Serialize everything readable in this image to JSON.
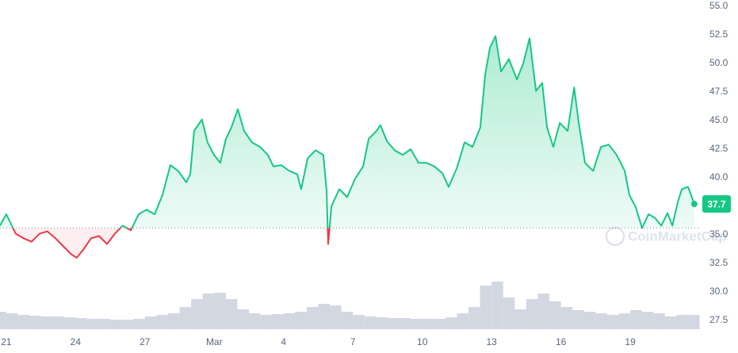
{
  "chart_data": {
    "type": "line",
    "x": [
      -0.27,
      0,
      0.24,
      0.41,
      0.75,
      1.1,
      1.44,
      1.78,
      2.13,
      2.47,
      2.81,
      3.05,
      3.33,
      3.67,
      4.01,
      4.36,
      4.7,
      5.04,
      5.39,
      5.73,
      6.07,
      6.42,
      6.76,
      7.1,
      7.44,
      7.79,
      7.96,
      8.13,
      8.47,
      8.71,
      8.99,
      9.26,
      9.5,
      9.74,
      10.02,
      10.29,
      10.63,
      10.98,
      11.32,
      11.56,
      11.9,
      12.25,
      12.59,
      12.76,
      13.04,
      13.38,
      13.72,
      13.86,
      13.93,
      14.07,
      14.41,
      14.75,
      15.09,
      15.44,
      15.68,
      16.02,
      16.19,
      16.47,
      16.81,
      17.15,
      17.5,
      17.84,
      18.18,
      18.52,
      18.87,
      19.14,
      19.49,
      19.83,
      20.17,
      20.51,
      20.72,
      20.93,
      21.17,
      21.41,
      21.75,
      22.09,
      22.37,
      22.64,
      22.92,
      23.19,
      23.4,
      23.67,
      23.95,
      24.29,
      24.57,
      24.77,
      25.04,
      25.39,
      25.73,
      26.07,
      26.41,
      26.76,
      26.96,
      27.24,
      27.51,
      27.79,
      28.06,
      28.34,
      28.61,
      28.82,
      29.06,
      29.23,
      29.5,
      29.77
    ],
    "values": [
      35.8,
      36.8,
      35.8,
      35.1,
      34.7,
      34.4,
      35.1,
      35.3,
      34.7,
      34,
      33.3,
      33,
      33.7,
      34.7,
      34.9,
      34.2,
      35.1,
      35.8,
      35.4,
      36.8,
      37.2,
      36.8,
      38.5,
      41.1,
      40.6,
      39.6,
      40.3,
      44.1,
      45.1,
      43.1,
      42,
      41.3,
      43.4,
      44.4,
      46,
      44.1,
      43.1,
      42.7,
      42,
      41,
      41.1,
      40.6,
      40.3,
      39,
      41.7,
      42.4,
      42,
      38.9,
      34.2,
      37.5,
      39,
      38.3,
      39.9,
      41,
      43.4,
      44.1,
      44.6,
      43.2,
      42.4,
      42,
      42.5,
      41.3,
      41.3,
      41,
      40.4,
      39.2,
      40.8,
      43.1,
      42.7,
      44.4,
      49,
      51.4,
      52.4,
      49.3,
      50.4,
      48.6,
      50,
      52.2,
      47.6,
      48.3,
      44.4,
      42.7,
      44.8,
      44.1,
      47.9,
      44.8,
      41.3,
      40.6,
      42.7,
      42.9,
      42,
      40.6,
      38.5,
      37.4,
      35.6,
      36.8,
      36.5,
      35.8,
      36.9,
      35.8,
      37.9,
      39,
      39.2,
      37.7
    ],
    "baseline": 35.6,
    "last_price": 37.7,
    "colors": {
      "up": "#16c784",
      "down": "#ea3943"
    },
    "volume": {
      "x": [
        -0.25,
        0.25,
        0.75,
        1.25,
        1.75,
        2.25,
        2.75,
        3.25,
        3.75,
        4.25,
        4.75,
        5.25,
        5.75,
        6.25,
        6.75,
        7.25,
        7.75,
        8.25,
        8.75,
        9.25,
        9.75,
        10.25,
        10.75,
        11.25,
        11.75,
        12.25,
        12.75,
        13.25,
        13.75,
        14.25,
        14.75,
        15.25,
        15.75,
        16.25,
        16.75,
        17.25,
        17.75,
        18.25,
        18.75,
        19.25,
        19.75,
        20.25,
        20.75,
        21.25,
        21.75,
        22.25,
        22.75,
        23.25,
        23.75,
        24.25,
        24.75,
        25.25,
        25.75,
        26.25,
        26.75,
        27.25,
        27.75,
        28.25,
        28.75,
        29.25,
        29.75
      ],
      "values": [
        22,
        20,
        18,
        17,
        16,
        16,
        15,
        14,
        13,
        13,
        12,
        12,
        13,
        16,
        18,
        20,
        28,
        38,
        45,
        46,
        38,
        25,
        20,
        18,
        19,
        20,
        22,
        28,
        32,
        30,
        22,
        18,
        16,
        15,
        14,
        14,
        13,
        13,
        13,
        15,
        20,
        28,
        55,
        60,
        40,
        25,
        38,
        45,
        35,
        28,
        24,
        22,
        20,
        18,
        20,
        24,
        22,
        20,
        16,
        18,
        18
      ],
      "ylim": [
        0,
        100
      ],
      "color": "#c8cddb"
    },
    "xlim": [
      -0.27,
      29.98
    ],
    "xticks": [
      {
        "value": 0,
        "label": "21"
      },
      {
        "value": 3,
        "label": "24"
      },
      {
        "value": 6,
        "label": "27"
      },
      {
        "value": 9,
        "label": "Mar"
      },
      {
        "value": 12,
        "label": "4"
      },
      {
        "value": 15,
        "label": "7"
      },
      {
        "value": 18,
        "label": "10"
      },
      {
        "value": 21,
        "label": "13"
      },
      {
        "value": 24,
        "label": "16"
      },
      {
        "value": 27,
        "label": "19"
      }
    ],
    "ylim": [
      26.74,
      55.56
    ],
    "yticks": [
      {
        "value": 27.5,
        "label": "27.5"
      },
      {
        "value": 30,
        "label": "30.0"
      },
      32.5,
      {
        "value": 35,
        "label": "35.0"
      },
      37.5,
      {
        "value": 40,
        "label": "40.0"
      },
      42.5,
      {
        "value": 45,
        "label": "45.0"
      },
      47.5,
      {
        "value": 50,
        "label": "50.0"
      },
      52.5,
      {
        "value": 55,
        "label": "55.0"
      }
    ],
    "grid": true,
    "watermark": "CoinMarketCap"
  }
}
